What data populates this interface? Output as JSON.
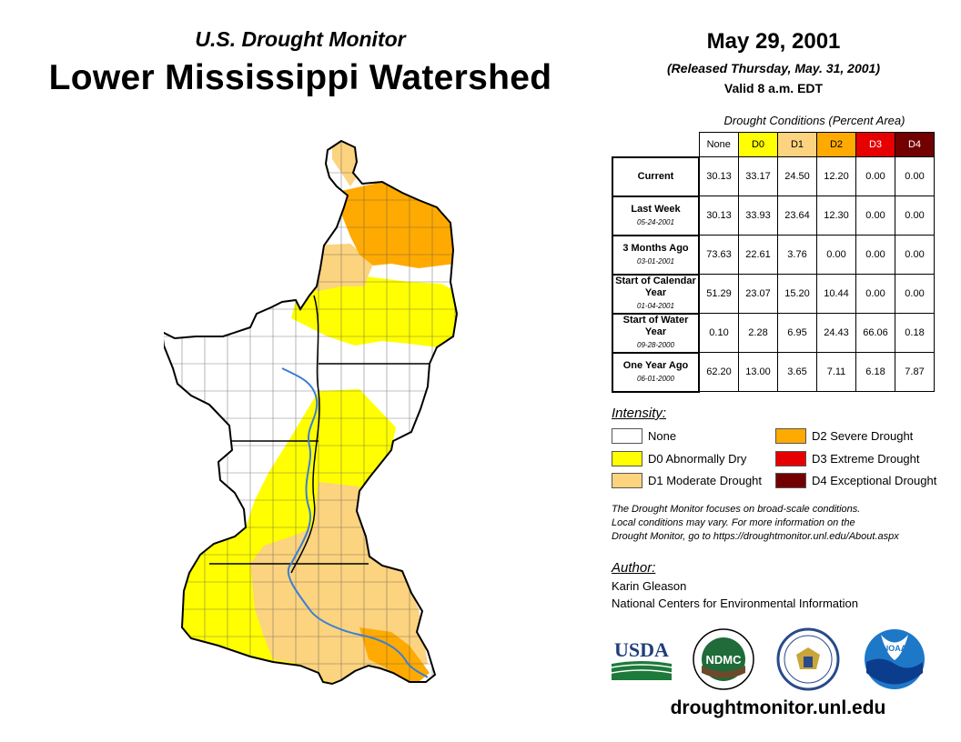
{
  "header": {
    "subtitle": "U.S. Drought Monitor",
    "title": "Lower Mississippi Watershed",
    "date": "May 29, 2001",
    "released": "(Released Thursday, May. 31, 2001)",
    "valid": "Valid 8 a.m. EDT"
  },
  "table": {
    "caption": "Drought Conditions (Percent Area)",
    "columns": [
      "None",
      "D0",
      "D1",
      "D2",
      "D3",
      "D4"
    ],
    "column_colors": [
      "#ffffff",
      "#ffff00",
      "#fcd37f",
      "#ffaa00",
      "#e60000",
      "#730000"
    ],
    "rows": [
      {
        "label": "Current",
        "sub": "",
        "values": [
          "30.13",
          "33.17",
          "24.50",
          "12.20",
          "0.00",
          "0.00"
        ]
      },
      {
        "label": "Last Week",
        "sub": "05-24-2001",
        "values": [
          "30.13",
          "33.93",
          "23.64",
          "12.30",
          "0.00",
          "0.00"
        ]
      },
      {
        "label": "3 Months Ago",
        "sub": "03-01-2001",
        "values": [
          "73.63",
          "22.61",
          "3.76",
          "0.00",
          "0.00",
          "0.00"
        ]
      },
      {
        "label": "Start of Calendar Year",
        "sub": "01-04-2001",
        "values": [
          "51.29",
          "23.07",
          "15.20",
          "10.44",
          "0.00",
          "0.00"
        ]
      },
      {
        "label": "Start of Water Year",
        "sub": "09-28-2000",
        "values": [
          "0.10",
          "2.28",
          "6.95",
          "24.43",
          "66.06",
          "0.18"
        ]
      },
      {
        "label": "One Year Ago",
        "sub": "06-01-2000",
        "values": [
          "62.20",
          "13.00",
          "3.65",
          "7.11",
          "6.18",
          "7.87"
        ]
      }
    ]
  },
  "legend": {
    "title": "Intensity:",
    "items": [
      {
        "label": "None",
        "color": "#ffffff"
      },
      {
        "label": "D0 Abnormally Dry",
        "color": "#ffff00"
      },
      {
        "label": "D1 Moderate Drought",
        "color": "#fcd37f"
      },
      {
        "label": "D2 Severe Drought",
        "color": "#ffaa00"
      },
      {
        "label": "D3 Extreme Drought",
        "color": "#e60000"
      },
      {
        "label": "D4 Exceptional Drought",
        "color": "#730000"
      }
    ]
  },
  "note": {
    "line1": "The Drought Monitor focuses on broad-scale conditions.",
    "line2": "Local conditions may vary. For more information on the",
    "line3": "Drought Monitor, go to https://droughtmonitor.unl.edu/About.aspx"
  },
  "author": {
    "title": "Author:",
    "name": "Karin Gleason",
    "org": "National Centers for Environmental Information"
  },
  "logos": {
    "usda": "USDA",
    "ndmc": "NDMC",
    "noaa": "NOAA"
  },
  "footer": {
    "url": "droughtmonitor.unl.edu"
  }
}
